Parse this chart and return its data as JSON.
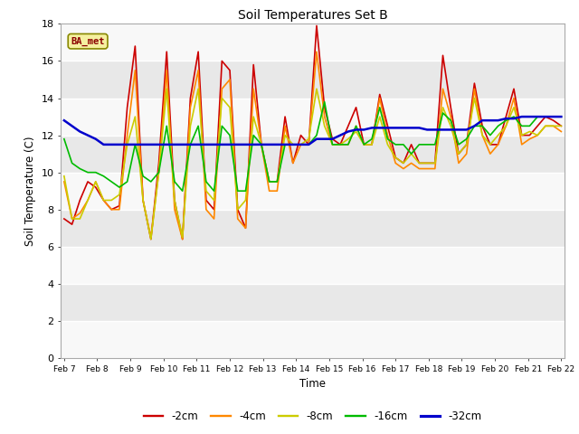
{
  "title": "Soil Temperatures Set B",
  "xlabel": "Time",
  "ylabel": "Soil Temperature (C)",
  "ylim": [
    0,
    18
  ],
  "yticks": [
    0,
    2,
    4,
    6,
    8,
    10,
    12,
    14,
    16,
    18
  ],
  "label_box": "BA_met",
  "series_order": [
    "-2cm",
    "-4cm",
    "-8cm",
    "-16cm",
    "-32cm"
  ],
  "series": {
    "-2cm": {
      "color": "#cc0000",
      "lw": 1.2
    },
    "-4cm": {
      "color": "#ff8800",
      "lw": 1.2
    },
    "-8cm": {
      "color": "#cccc00",
      "lw": 1.2
    },
    "-16cm": {
      "color": "#00bb00",
      "lw": 1.2
    },
    "-32cm": {
      "color": "#0000cc",
      "lw": 1.8
    }
  },
  "x_labels": [
    "Feb 7",
    "Feb 8",
    "Feb 9",
    "Feb 10",
    "Feb 11",
    "Feb 12",
    "Feb 13",
    "Feb 14",
    "Feb 15",
    "Feb 16",
    "Feb 17",
    "Feb 18",
    "Feb 19",
    "Feb 20",
    "Feb 21",
    "Feb 22"
  ],
  "n_points_per_day": 4,
  "band_colors": [
    "#e8e8e8",
    "#d8d8d8"
  ],
  "data": {
    "-2cm": [
      7.5,
      7.2,
      8.5,
      9.5,
      9.2,
      8.5,
      8.0,
      8.2,
      13.5,
      16.8,
      8.5,
      6.4,
      10.5,
      16.5,
      8.5,
      6.4,
      14.0,
      16.5,
      8.5,
      8.0,
      16.0,
      15.5,
      8.0,
      7.0,
      15.8,
      11.5,
      9.5,
      9.5,
      13.0,
      10.5,
      12.0,
      11.5,
      17.9,
      13.5,
      11.8,
      11.5,
      12.5,
      13.5,
      11.5,
      11.5,
      14.2,
      12.5,
      10.8,
      10.5,
      11.5,
      10.5,
      10.5,
      10.5,
      16.3,
      13.5,
      11.0,
      11.5,
      14.8,
      12.5,
      11.5,
      11.5,
      13.0,
      14.5,
      12.0,
      12.0,
      12.5,
      13.0,
      12.8,
      12.5
    ],
    "-4cm": [
      9.5,
      7.5,
      7.8,
      8.5,
      9.5,
      8.5,
      8.0,
      8.0,
      12.0,
      15.5,
      8.5,
      6.5,
      10.0,
      15.5,
      8.0,
      6.4,
      13.5,
      15.5,
      8.0,
      7.5,
      14.5,
      15.0,
      7.5,
      7.0,
      14.5,
      11.5,
      9.0,
      9.0,
      12.5,
      10.5,
      11.5,
      11.5,
      16.5,
      13.0,
      11.5,
      11.5,
      11.5,
      12.5,
      11.5,
      11.5,
      14.0,
      12.0,
      10.5,
      10.2,
      10.5,
      10.2,
      10.2,
      10.2,
      14.5,
      13.0,
      10.5,
      11.0,
      14.5,
      12.0,
      11.0,
      11.5,
      12.5,
      14.0,
      11.5,
      11.8,
      12.0,
      12.5,
      12.5,
      12.2
    ],
    "-8cm": [
      9.8,
      7.5,
      7.5,
      8.5,
      9.5,
      8.5,
      8.5,
      8.8,
      11.5,
      13.0,
      8.5,
      6.4,
      10.0,
      14.5,
      8.5,
      6.5,
      12.5,
      14.5,
      9.0,
      8.5,
      14.0,
      13.5,
      8.0,
      8.5,
      13.0,
      11.5,
      9.5,
      9.5,
      12.0,
      11.5,
      11.5,
      11.8,
      14.5,
      12.5,
      11.5,
      11.5,
      11.8,
      12.2,
      11.5,
      11.5,
      13.0,
      11.5,
      10.8,
      10.5,
      11.0,
      10.5,
      10.5,
      10.5,
      13.5,
      12.5,
      11.0,
      11.5,
      14.0,
      12.0,
      11.5,
      12.0,
      12.5,
      13.5,
      12.0,
      12.2,
      12.0,
      12.5,
      12.5,
      12.5
    ],
    "-16cm": [
      11.8,
      10.5,
      10.2,
      10.0,
      10.0,
      9.8,
      9.5,
      9.2,
      9.5,
      11.5,
      9.8,
      9.5,
      10.0,
      12.5,
      9.5,
      9.0,
      11.5,
      12.5,
      9.5,
      9.0,
      12.5,
      12.0,
      9.0,
      9.0,
      12.0,
      11.5,
      9.5,
      9.5,
      11.5,
      11.5,
      11.5,
      11.5,
      12.0,
      13.8,
      11.5,
      11.5,
      11.5,
      12.5,
      11.5,
      11.8,
      13.5,
      11.8,
      11.5,
      11.5,
      11.0,
      11.5,
      11.5,
      11.5,
      13.2,
      12.8,
      11.5,
      11.8,
      12.5,
      12.5,
      12.0,
      12.5,
      12.8,
      13.0,
      12.5,
      12.5,
      13.0,
      13.0,
      13.0,
      13.0
    ],
    "-32cm": [
      12.8,
      12.5,
      12.2,
      12.0,
      11.8,
      11.5,
      11.5,
      11.5,
      11.5,
      11.5,
      11.5,
      11.5,
      11.5,
      11.5,
      11.5,
      11.5,
      11.5,
      11.5,
      11.5,
      11.5,
      11.5,
      11.5,
      11.5,
      11.5,
      11.5,
      11.5,
      11.5,
      11.5,
      11.5,
      11.5,
      11.5,
      11.5,
      11.8,
      11.8,
      11.8,
      12.0,
      12.2,
      12.3,
      12.3,
      12.4,
      12.4,
      12.4,
      12.4,
      12.4,
      12.4,
      12.4,
      12.3,
      12.3,
      12.3,
      12.3,
      12.3,
      12.3,
      12.5,
      12.8,
      12.8,
      12.8,
      12.9,
      12.9,
      13.0,
      13.0,
      13.0,
      13.0,
      13.0,
      13.0
    ]
  }
}
